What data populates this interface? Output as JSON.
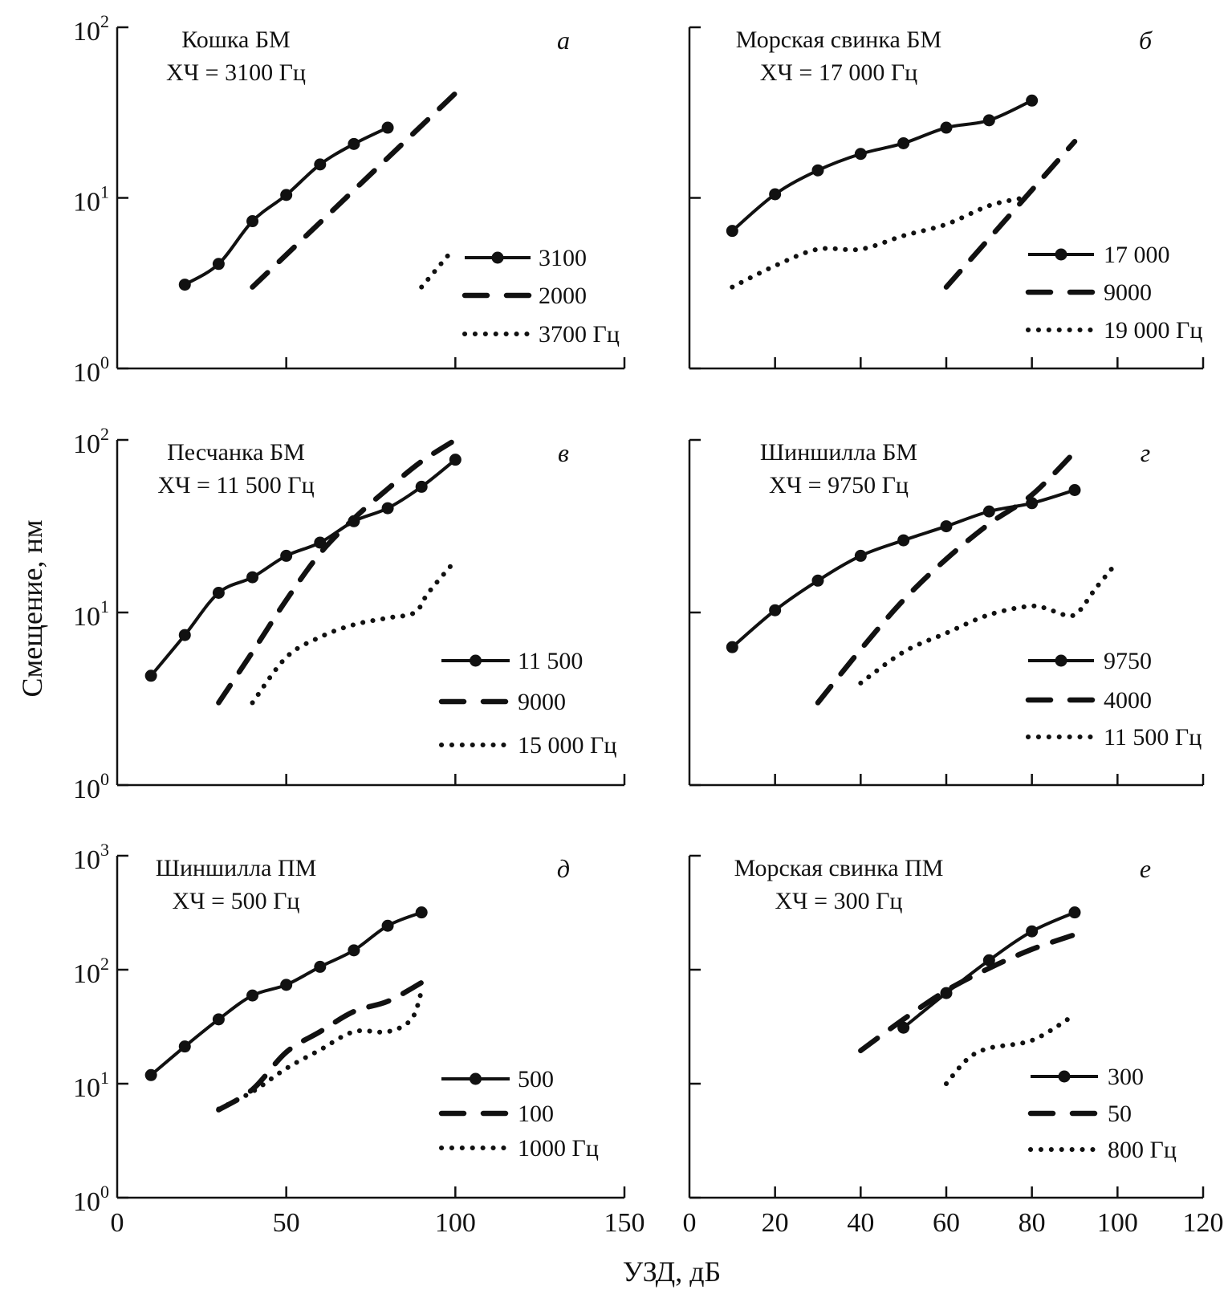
{
  "chart_data": {
    "type": "line",
    "xlabel": "УЗД, дБ",
    "ylabel": "Смещение, нм",
    "yscale": "log",
    "grid": false,
    "panels": [
      {
        "id": "a",
        "letter": "а",
        "title": "Кошка БМ",
        "subtitle": "ХЧ = 3100 Гц",
        "xlim": [
          0,
          150
        ],
        "xticks": [
          0,
          50,
          100,
          150
        ],
        "ylim": [
          1,
          100
        ],
        "yticks": [
          1,
          10,
          100
        ],
        "ytick_labels": [
          {
            "base": "10",
            "exp": "0"
          },
          {
            "base": "10",
            "exp": "1"
          },
          {
            "base": "10",
            "exp": "2"
          }
        ],
        "legend_position": "bottom-right",
        "series": [
          {
            "name": "3100",
            "style": "solid-marker",
            "x": [
              20,
              30,
              40,
              50,
              60,
              70,
              80
            ],
            "y": [
              3.1,
              4.1,
              7.3,
              10.4,
              15.7,
              20.7,
              25.8
            ]
          },
          {
            "name": "2000",
            "style": "dashed",
            "x": [
              40,
              100
            ],
            "y": [
              3.0,
              41
            ]
          },
          {
            "name": "3700 Гц",
            "style": "dotted",
            "x": [
              90,
              99
            ],
            "y": [
              3.0,
              4.9
            ]
          }
        ]
      },
      {
        "id": "b",
        "letter": "б",
        "title": "Морская свинка БМ",
        "subtitle": "ХЧ = 17 000 Гц",
        "xlim": [
          0,
          120
        ],
        "xticks": [
          0,
          20,
          40,
          60,
          80,
          100,
          120
        ],
        "ylim": [
          1,
          100
        ],
        "yticks": [
          1,
          10,
          100
        ],
        "ytick_labels": [],
        "legend_position": "bottom-right",
        "series": [
          {
            "name": "17 000",
            "style": "solid-marker",
            "x": [
              10,
              20,
              30,
              40,
              50,
              60,
              70,
              80
            ],
            "y": [
              6.4,
              10.5,
              14.5,
              18.1,
              20.9,
              25.8,
              28.5,
              37.2
            ]
          },
          {
            "name": "9000",
            "style": "dashed",
            "x": [
              60,
              90
            ],
            "y": [
              3.0,
              21.4
            ]
          },
          {
            "name": "19 000 Гц",
            "style": "dotted",
            "x": [
              10,
              20,
              30,
              40,
              50,
              60,
              70,
              78
            ],
            "y": [
              3.0,
              4.0,
              5.0,
              5.0,
              6.0,
              7.0,
              9.0,
              10.0
            ]
          }
        ]
      },
      {
        "id": "v",
        "letter": "в",
        "title": "Песчанка БМ",
        "subtitle": "ХЧ = 11 500 Гц",
        "xlim": [
          0,
          150
        ],
        "xticks": [
          0,
          50,
          100,
          150
        ],
        "ylim": [
          1,
          100
        ],
        "yticks": [
          1,
          10,
          100
        ],
        "ytick_labels": [
          {
            "base": "10",
            "exp": "0"
          },
          {
            "base": "10",
            "exp": "1"
          },
          {
            "base": "10",
            "exp": "2"
          }
        ],
        "legend_position": "bottom-right",
        "series": [
          {
            "name": "11 500",
            "style": "solid-marker",
            "x": [
              10,
              20,
              30,
              40,
              50,
              60,
              70,
              80,
              90,
              100
            ],
            "y": [
              4.3,
              7.4,
              13.0,
              16.0,
              21.3,
              25.4,
              33.8,
              40.2,
              53.5,
              76.8
            ]
          },
          {
            "name": "9000",
            "style": "dashed",
            "x": [
              30,
              40,
              50,
              60,
              70,
              80,
              90,
              100
            ],
            "y": [
              3.0,
              5.9,
              11.8,
              22,
              35,
              52,
              75,
              100
            ]
          },
          {
            "name": "15 000 Гц",
            "style": "dotted",
            "x": [
              40,
              50,
              60,
              70,
              80,
              88,
              92,
              100
            ],
            "y": [
              3.0,
              5.5,
              7.2,
              8.5,
              9.3,
              10.0,
              13.0,
              20.0
            ]
          }
        ]
      },
      {
        "id": "g",
        "letter": "г",
        "title": "Шиншилла БМ",
        "subtitle": "ХЧ = 9750 Гц",
        "xlim": [
          0,
          120
        ],
        "xticks": [
          0,
          20,
          40,
          60,
          80,
          100,
          120
        ],
        "ylim": [
          1,
          100
        ],
        "yticks": [
          1,
          10,
          100
        ],
        "ytick_labels": [],
        "legend_position": "bottom-right",
        "series": [
          {
            "name": "9750",
            "style": "solid-marker",
            "x": [
              10,
              20,
              30,
              40,
              50,
              60,
              70,
              80,
              90
            ],
            "y": [
              6.3,
              10.3,
              15.3,
              21.3,
              26.2,
              31.6,
              38.5,
              43,
              51.2
            ]
          },
          {
            "name": "4000",
            "style": "dashed",
            "x": [
              30,
              40,
              50,
              60,
              70,
              80,
              90
            ],
            "y": [
              3.0,
              6.1,
              11.8,
              20.4,
              32.6,
              48,
              85
            ]
          },
          {
            "name": "11 500 Гц",
            "style": "dotted",
            "x": [
              40,
              50,
              60,
              70,
              80,
              85,
              90,
              95,
              100
            ],
            "y": [
              3.9,
              5.9,
              7.6,
              9.7,
              10.9,
              10.2,
              9.7,
              13.9,
              19.7
            ]
          }
        ]
      },
      {
        "id": "d",
        "letter": "д",
        "title": "Шиншилла ПМ",
        "subtitle": "ХЧ = 500 Гц",
        "xlim": [
          0,
          150
        ],
        "xticks": [
          0,
          50,
          100,
          150
        ],
        "ylim": [
          1,
          1000
        ],
        "yticks": [
          1,
          10,
          100,
          1000
        ],
        "ytick_labels": [
          {
            "base": "10",
            "exp": "0"
          },
          {
            "base": "10",
            "exp": "1"
          },
          {
            "base": "10",
            "exp": "2"
          },
          {
            "base": "10",
            "exp": "3"
          }
        ],
        "legend_position": "bottom-right",
        "series": [
          {
            "name": "500",
            "style": "solid-marker",
            "x": [
              10,
              20,
              30,
              40,
              50,
              60,
              70,
              80,
              90
            ],
            "y": [
              11.9,
              21.2,
              36.7,
              59.4,
              73.7,
              106,
              148,
              243,
              318
            ]
          },
          {
            "name": "100",
            "style": "dashed",
            "x": [
              30,
              40,
              50,
              60,
              70,
              80,
              90
            ],
            "y": [
              5.9,
              8.9,
              18.9,
              28.6,
              43,
              52.8,
              77
            ]
          },
          {
            "name": "1000 Гц",
            "style": "dotted",
            "x": [
              30,
              40,
              50,
              60,
              70,
              80,
              87,
              90
            ],
            "y": [
              6.0,
              8.5,
              13.6,
              19.8,
              28.6,
              28.6,
              36.7,
              65
            ]
          }
        ]
      },
      {
        "id": "e",
        "letter": "е",
        "title": "Морская свинка ПМ",
        "subtitle": "ХЧ = 300 Гц",
        "xlim": [
          0,
          120
        ],
        "xticks": [
          0,
          20,
          40,
          60,
          80,
          100,
          120
        ],
        "ylim": [
          1,
          1000
        ],
        "yticks": [
          1,
          10,
          100,
          1000
        ],
        "ytick_labels": [],
        "legend_position": "bottom-right",
        "series": [
          {
            "name": "300",
            "style": "solid-marker",
            "x": [
              50,
              60,
              70,
              80,
              90
            ],
            "y": [
              31,
              62.4,
              121,
              217,
              318
            ]
          },
          {
            "name": "50",
            "style": "dashed",
            "x": [
              40,
              50,
              60,
              70,
              80,
              90
            ],
            "y": [
              19.5,
              36.7,
              65.6,
              103,
              151,
              203
            ]
          },
          {
            "name": "800 Гц",
            "style": "dotted",
            "x": [
              60,
              65,
              70,
              80,
              89
            ],
            "y": [
              10,
              16.5,
              20.5,
              24,
              38
            ]
          }
        ]
      }
    ]
  }
}
